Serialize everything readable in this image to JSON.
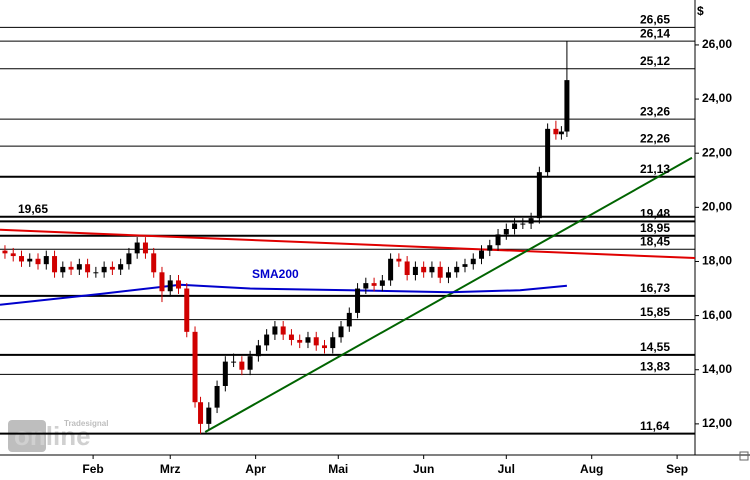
{
  "chart_data": {
    "type": "candlestick",
    "currency": "$",
    "watermark_brand": "Tradesignal",
    "watermark": "online",
    "xlim": [
      -1.8,
      250.5
    ],
    "ylim": [
      10.85,
      27.66
    ],
    "xticks": [
      {
        "value": 32,
        "label": "Feb"
      },
      {
        "value": 60,
        "label": "Mrz"
      },
      {
        "value": 91,
        "label": "Apr"
      },
      {
        "value": 121,
        "label": "Mai"
      },
      {
        "value": 152,
        "label": "Jun"
      },
      {
        "value": 182,
        "label": "Jul"
      },
      {
        "value": 213,
        "label": "Aug"
      },
      {
        "value": 244,
        "label": "Sep"
      }
    ],
    "yticks": [
      {
        "value": 12,
        "label": "12,00"
      },
      {
        "value": 14,
        "label": "14,00"
      },
      {
        "value": 16,
        "label": "16,00"
      },
      {
        "value": 18,
        "label": "18,00"
      },
      {
        "value": 20,
        "label": "20,00"
      },
      {
        "value": 22,
        "label": "22,00"
      },
      {
        "value": 24,
        "label": "24,00"
      },
      {
        "value": 26,
        "label": "26,00"
      }
    ],
    "up_color": "#000000",
    "down_color": "#d00000",
    "x": [
      0,
      3,
      6,
      9,
      12,
      15,
      18,
      21,
      24,
      27,
      30,
      33,
      36,
      39,
      42,
      45,
      48,
      51,
      54,
      57,
      60,
      63,
      66,
      69,
      71,
      74,
      77,
      80,
      83,
      86,
      89,
      92,
      95,
      98,
      101,
      104,
      107,
      110,
      113,
      116,
      119,
      122,
      125,
      128,
      131,
      134,
      137,
      140,
      143,
      146,
      149,
      152,
      155,
      158,
      161,
      164,
      167,
      170,
      173,
      176,
      179,
      182,
      185,
      188,
      191,
      194,
      197,
      200,
      202,
      204
    ],
    "open": [
      18.4,
      18.3,
      18.2,
      18.0,
      18.1,
      17.9,
      18.2,
      17.6,
      17.8,
      17.7,
      17.9,
      17.6,
      17.6,
      17.8,
      17.7,
      17.9,
      18.3,
      18.7,
      18.3,
      17.6,
      16.9,
      17.3,
      17.0,
      15.4,
      12.8,
      12.0,
      12.6,
      13.4,
      14.3,
      14.3,
      14.0,
      14.5,
      14.9,
      15.3,
      15.6,
      15.3,
      15.1,
      15.0,
      15.2,
      14.9,
      14.8,
      15.2,
      15.6,
      16.1,
      17.0,
      17.2,
      17.1,
      17.3,
      18.1,
      18.0,
      17.5,
      17.8,
      17.6,
      17.8,
      17.4,
      17.6,
      17.8,
      17.9,
      18.1,
      18.4,
      18.6,
      19.0,
      19.2,
      19.4,
      19.4,
      19.6,
      21.3,
      22.9,
      22.7,
      22.8
    ],
    "high": [
      18.6,
      18.5,
      18.4,
      18.3,
      18.3,
      18.4,
      18.4,
      18.0,
      18.0,
      18.1,
      18.1,
      17.8,
      18.0,
      18.0,
      18.1,
      18.5,
      18.9,
      18.9,
      18.5,
      17.8,
      17.5,
      17.5,
      17.2,
      15.6,
      13.0,
      12.8,
      13.6,
      14.5,
      14.6,
      14.5,
      14.7,
      15.1,
      15.5,
      15.8,
      15.8,
      15.5,
      15.3,
      15.4,
      15.4,
      15.1,
      15.4,
      15.8,
      16.3,
      17.2,
      17.4,
      17.4,
      17.5,
      18.3,
      18.3,
      18.2,
      18.0,
      18.0,
      18.0,
      18.0,
      17.8,
      18.0,
      18.1,
      18.3,
      18.6,
      18.8,
      19.2,
      19.4,
      19.6,
      19.6,
      19.8,
      21.5,
      23.1,
      23.2,
      23.0,
      26.14
    ],
    "low": [
      18.1,
      18.0,
      17.8,
      17.8,
      17.7,
      17.7,
      17.4,
      17.4,
      17.5,
      17.5,
      17.4,
      17.4,
      17.4,
      17.5,
      17.5,
      17.7,
      18.1,
      18.1,
      17.4,
      16.5,
      16.7,
      16.8,
      15.2,
      12.6,
      11.64,
      11.8,
      12.4,
      13.2,
      14.1,
      13.8,
      13.8,
      14.3,
      14.7,
      15.1,
      15.1,
      14.9,
      14.8,
      14.8,
      14.7,
      14.6,
      14.6,
      15.0,
      15.4,
      15.9,
      16.8,
      16.9,
      16.9,
      17.1,
      17.8,
      17.3,
      17.3,
      17.4,
      17.4,
      17.2,
      17.2,
      17.4,
      17.6,
      17.7,
      17.9,
      18.2,
      18.4,
      18.8,
      19.0,
      19.2,
      19.2,
      19.4,
      21.1,
      22.5,
      22.5,
      22.6
    ],
    "close": [
      18.3,
      18.2,
      18.0,
      18.1,
      17.9,
      18.2,
      17.6,
      17.8,
      17.7,
      17.9,
      17.6,
      17.6,
      17.8,
      17.7,
      17.9,
      18.3,
      18.7,
      18.3,
      17.6,
      16.9,
      17.3,
      17.0,
      15.4,
      12.8,
      12.0,
      12.6,
      13.4,
      14.3,
      14.3,
      14.0,
      14.5,
      14.9,
      15.3,
      15.6,
      15.3,
      15.1,
      15.0,
      15.2,
      14.9,
      14.8,
      15.2,
      15.6,
      16.1,
      17.0,
      17.2,
      17.1,
      17.3,
      18.1,
      18.0,
      17.5,
      17.8,
      17.6,
      17.8,
      17.4,
      17.6,
      17.8,
      17.9,
      18.1,
      18.4,
      18.6,
      19.0,
      19.2,
      19.4,
      19.4,
      19.6,
      21.3,
      22.9,
      22.7,
      22.8,
      24.7
    ],
    "series": [
      {
        "name": "SMA200",
        "color": "#0000cc",
        "x": [
          -1.8,
          34.5,
          63.6,
          89,
          125.3,
          161.6,
          187,
          204
        ],
        "values": [
          16.4,
          16.8,
          17.14,
          17.0,
          16.94,
          16.86,
          16.94,
          17.1
        ]
      }
    ],
    "trendlines": [
      {
        "color": "#e00000",
        "x": [
          -1.8,
          250.5
        ],
        "values": [
          19.17,
          18.13
        ]
      },
      {
        "color": "#006400",
        "x": [
          72.7,
          249.4
        ],
        "values": [
          11.7,
          21.83
        ]
      }
    ],
    "levels": [
      {
        "value": 26.65,
        "label": "26,65",
        "width": 1
      },
      {
        "value": 26.14,
        "label": "26,14",
        "width": 1
      },
      {
        "value": 25.12,
        "label": "25,12",
        "width": 1
      },
      {
        "value": 23.26,
        "label": "23,26",
        "width": 1
      },
      {
        "value": 22.26,
        "label": "22,26",
        "width": 1
      },
      {
        "value": 21.13,
        "label": "21,13",
        "width": 2
      },
      {
        "value": 19.65,
        "label": "19,65",
        "width": 2,
        "side": "left"
      },
      {
        "value": 19.48,
        "label": "19,48",
        "width": 2
      },
      {
        "value": 18.95,
        "label": "18,95",
        "width": 2
      },
      {
        "value": 18.45,
        "label": "18,45",
        "width": 1
      },
      {
        "value": 16.73,
        "label": "16,73",
        "width": 2
      },
      {
        "value": 15.85,
        "label": "15,85",
        "width": 1
      },
      {
        "value": 14.55,
        "label": "14,55",
        "width": 2
      },
      {
        "value": 13.83,
        "label": "13,83",
        "width": 1
      },
      {
        "value": 11.64,
        "label": "11,64",
        "width": 2
      }
    ]
  }
}
